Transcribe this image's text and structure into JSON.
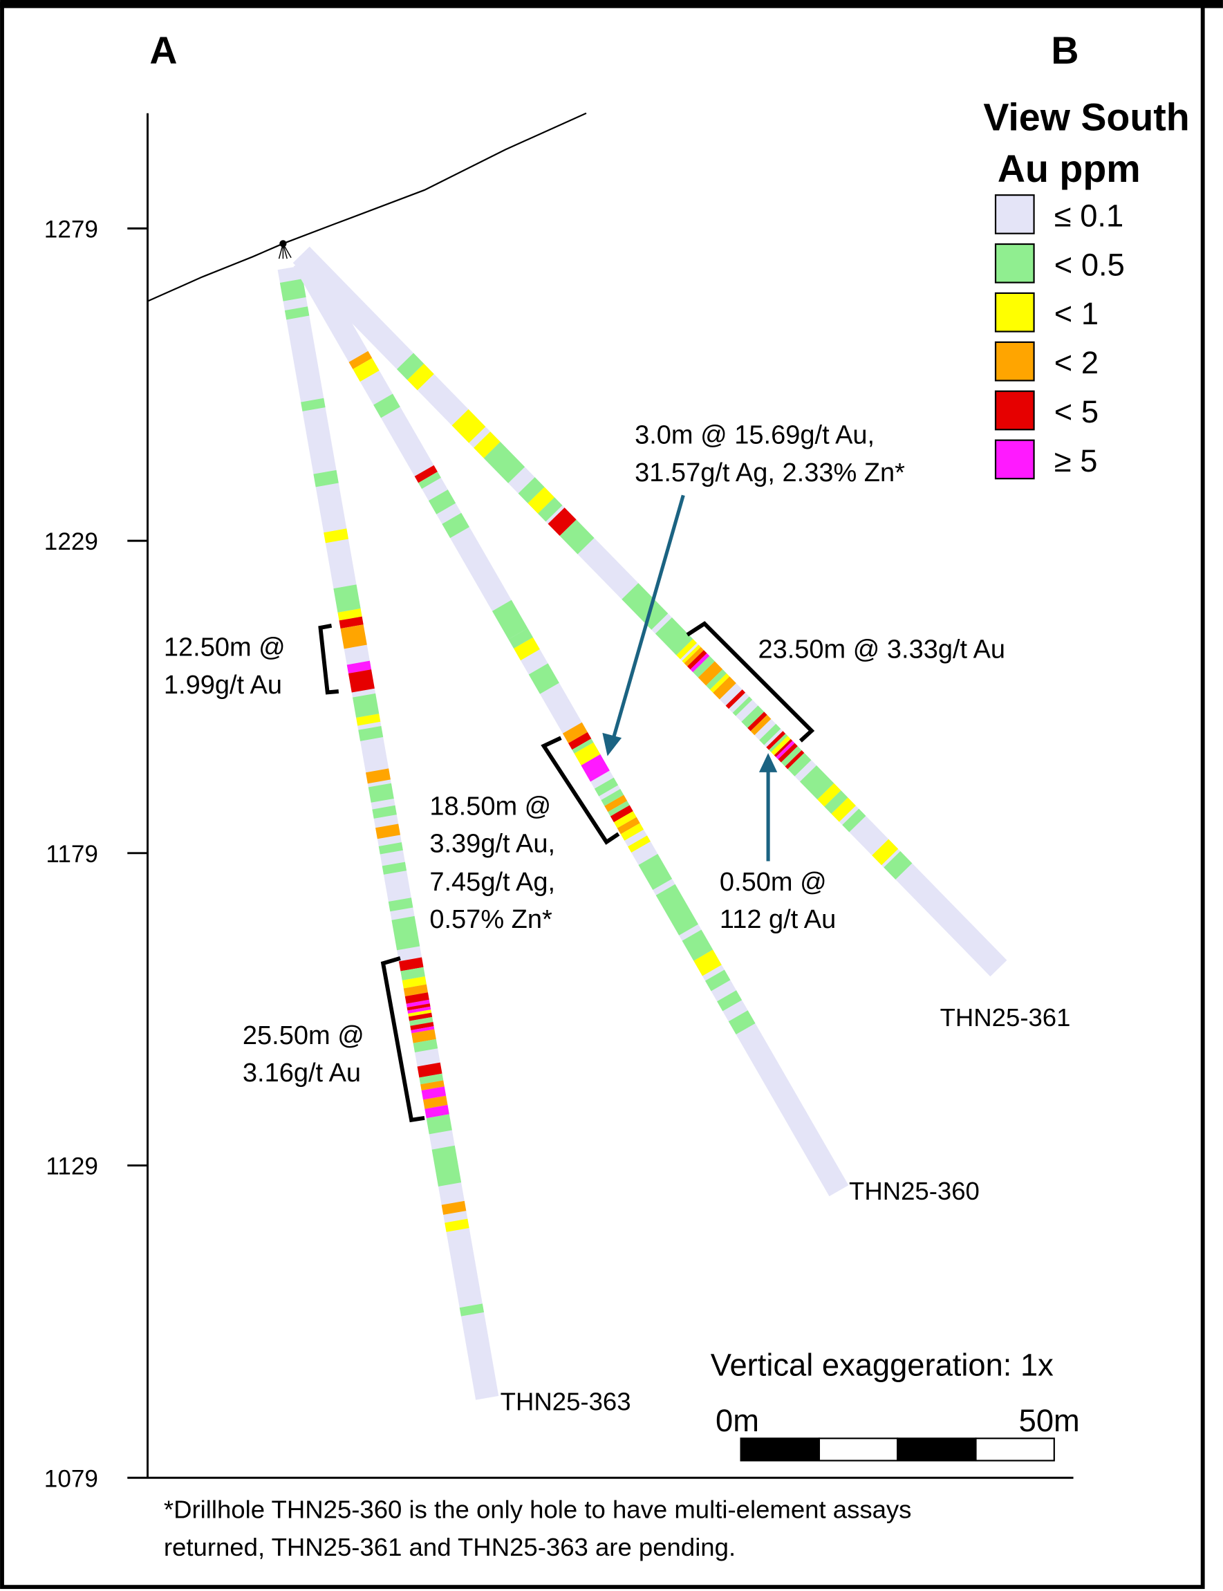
{
  "section": {
    "start_label": "A",
    "end_label": "B",
    "view": "View South"
  },
  "legend": {
    "title": "Au ppm",
    "items": [
      {
        "label": "≤ 0.1",
        "color": "#e4e4f7"
      },
      {
        "label": "< 0.5",
        "color": "#90ee90"
      },
      {
        "label": "< 1",
        "color": "#ffff00"
      },
      {
        "label": "< 2",
        "color": "#ffa500"
      },
      {
        "label": "< 5",
        "color": "#e60000"
      },
      {
        "label": "≥ 5",
        "color": "#ff1aff"
      }
    ]
  },
  "elevation_axis": {
    "ticks": [
      "1279",
      "1229",
      "1179",
      "1129",
      "1079"
    ]
  },
  "holes": [
    {
      "id": "THN25-363",
      "depth_m": 183.7,
      "intervals": [
        [
          2.1,
          5.1,
          1
        ],
        [
          6.6,
          8.1,
          1
        ],
        [
          21.5,
          23,
          1
        ],
        [
          33.2,
          35.3,
          1
        ],
        [
          42.7,
          44.4,
          2
        ],
        [
          51.8,
          55.7,
          1
        ],
        [
          55.7,
          57.0,
          2
        ],
        [
          57.0,
          58.3,
          4
        ],
        [
          58.3,
          61.6,
          3
        ],
        [
          64.2,
          65.6,
          5
        ],
        [
          65.6,
          68.7,
          4
        ],
        [
          69.5,
          72.8,
          1
        ],
        [
          72.8,
          74.1,
          2
        ],
        [
          74.8,
          76.6,
          1
        ],
        [
          81.7,
          83.5,
          3
        ],
        [
          84.1,
          86.6,
          1
        ],
        [
          87.7,
          89.2,
          1
        ],
        [
          90.7,
          92.5,
          3
        ],
        [
          93.7,
          95.0,
          1
        ],
        [
          96.9,
          98.3,
          1
        ],
        [
          102.7,
          104.3,
          1
        ],
        [
          105.7,
          110.6,
          1
        ],
        [
          112.4,
          114.0,
          4
        ],
        [
          114.0,
          115.5,
          1
        ],
        [
          115.5,
          116.8,
          2
        ],
        [
          116.8,
          118.1,
          3
        ],
        [
          118.1,
          119.3,
          4
        ],
        [
          119.3,
          119.9,
          5
        ],
        [
          119.9,
          120.4,
          4
        ],
        [
          120.4,
          120.9,
          5
        ],
        [
          120.9,
          121.4,
          2
        ],
        [
          121.4,
          122.1,
          4
        ],
        [
          122.1,
          122.9,
          1
        ],
        [
          122.9,
          123.6,
          4
        ],
        [
          123.6,
          124.1,
          5
        ],
        [
          124.1,
          125.7,
          3
        ],
        [
          125.7,
          127.2,
          1
        ],
        [
          129.5,
          131.3,
          4
        ],
        [
          131.3,
          132.4,
          1
        ],
        [
          132.4,
          133.4,
          3
        ],
        [
          133.4,
          134.9,
          5
        ],
        [
          134.9,
          136.4,
          3
        ],
        [
          136.4,
          137.9,
          5
        ],
        [
          137.9,
          140.5,
          1
        ],
        [
          143.0,
          149.0,
          1
        ],
        [
          152.0,
          153.6,
          3
        ],
        [
          154.9,
          156.4,
          2
        ],
        [
          168.7,
          170.1,
          1
        ]
      ]
    },
    {
      "id": "THN25-360",
      "depth_m": 171.8,
      "intervals": [
        [
          17.7,
          19.0,
          3
        ],
        [
          19.0,
          21.3,
          2
        ],
        [
          25.6,
          28.0,
          1
        ],
        [
          38.8,
          40.0,
          4
        ],
        [
          40.0,
          41.1,
          1
        ],
        [
          43.3,
          45.8,
          1
        ],
        [
          47.6,
          50.2,
          1
        ],
        [
          63.7,
          68.9,
          1
        ],
        [
          68.9,
          70.6,
          1
        ],
        [
          70.6,
          72.8,
          2
        ],
        [
          75.4,
          79.0,
          1
        ],
        [
          86.3,
          88.1,
          3
        ],
        [
          88.1,
          89.3,
          4
        ],
        [
          89.3,
          90.0,
          1
        ],
        [
          90.0,
          92.2,
          2
        ],
        [
          92.2,
          95.2,
          5
        ],
        [
          96.5,
          97.9,
          1
        ],
        [
          98.6,
          99.7,
          1
        ],
        [
          99.7,
          100.8,
          3
        ],
        [
          100.8,
          101.6,
          1
        ],
        [
          101.6,
          102.7,
          4
        ],
        [
          102.7,
          103.8,
          2
        ],
        [
          103.8,
          104.9,
          3
        ],
        [
          104.9,
          106.1,
          2
        ],
        [
          107.2,
          108.3,
          2
        ],
        [
          110.6,
          115.2,
          1
        ],
        [
          116.2,
          123.6,
          1
        ],
        [
          124.6,
          128.3,
          1
        ],
        [
          128.3,
          131.1,
          2
        ],
        [
          132.0,
          133.9,
          1
        ],
        [
          135.8,
          137.6,
          1
        ],
        [
          139.5,
          141.9,
          1
        ]
      ]
    },
    {
      "id": "THN25-361",
      "depth_m": 159.7,
      "intervals": [
        [
          23.8,
          26.2,
          1
        ],
        [
          26.2,
          28.5,
          2
        ],
        [
          36.4,
          40.3,
          2
        ],
        [
          41.4,
          43.7,
          2
        ],
        [
          43.7,
          49.3,
          1
        ],
        [
          51.6,
          53.8,
          1
        ],
        [
          53.8,
          56.1,
          2
        ],
        [
          56.1,
          57.9,
          1
        ],
        [
          58.4,
          61.1,
          4
        ],
        [
          61.1,
          65.2,
          1
        ],
        [
          75.3,
          82.1,
          1
        ],
        [
          83.0,
          87.8,
          1
        ],
        [
          87.8,
          88.7,
          2
        ],
        [
          89.1,
          89.6,
          2
        ],
        [
          89.6,
          90.3,
          3
        ],
        [
          90.3,
          91.0,
          4
        ],
        [
          91.0,
          91.6,
          5
        ],
        [
          91.6,
          92.8,
          1
        ],
        [
          92.8,
          94.6,
          3
        ],
        [
          94.6,
          95.5,
          1
        ],
        [
          95.5,
          96.2,
          2
        ],
        [
          96.2,
          97.7,
          3
        ],
        [
          99.1,
          99.8,
          4
        ],
        [
          100.7,
          101.4,
          1
        ],
        [
          102.7,
          104.1,
          1
        ],
        [
          104.1,
          104.8,
          4
        ],
        [
          104.8,
          105.7,
          3
        ],
        [
          106.8,
          107.9,
          1
        ],
        [
          108.4,
          109.0,
          4
        ],
        [
          109.0,
          109.5,
          1
        ],
        [
          109.5,
          110.2,
          2
        ],
        [
          110.2,
          110.6,
          4
        ],
        [
          110.6,
          111.1,
          5
        ],
        [
          111.1,
          111.8,
          4
        ],
        [
          111.8,
          112.7,
          1
        ],
        [
          112.7,
          113.3,
          4
        ],
        [
          113.3,
          114.9,
          1
        ],
        [
          116.1,
          120.1,
          1
        ],
        [
          120.1,
          121.7,
          2
        ],
        [
          121.7,
          123.3,
          1
        ],
        [
          123.3,
          125.1,
          2
        ],
        [
          125.8,
          127.4,
          1
        ],
        [
          132.6,
          134.8,
          2
        ],
        [
          135.3,
          138.0,
          1
        ]
      ]
    }
  ],
  "annotations": {
    "a363_upper": [
      "12.50m @",
      "1.99g/t Au"
    ],
    "a363_lower": [
      "25.50m @",
      "3.16g/t Au"
    ],
    "a360": [
      "18.50m @",
      "3.39g/t Au,",
      "7.45g/t Ag,",
      "0.57% Zn*"
    ],
    "a360_callout": [
      "3.0m @ 15.69g/t Au,",
      "31.57g/t Ag, 2.33% Zn*"
    ],
    "a361": [
      "23.50m @ 3.33g/t Au"
    ],
    "a361_callout": [
      "0.50m @",
      "112 g/t Au"
    ],
    "callout_color": "#1b6382"
  },
  "scale": {
    "exaggeration": "Vertical exaggeration: 1x",
    "start": "0m",
    "end": "50m"
  },
  "footnote": [
    "*Drillhole THN25-360 is the only hole to have multi-element assays",
    "returned, THN25-361 and THN25-363 are pending."
  ]
}
